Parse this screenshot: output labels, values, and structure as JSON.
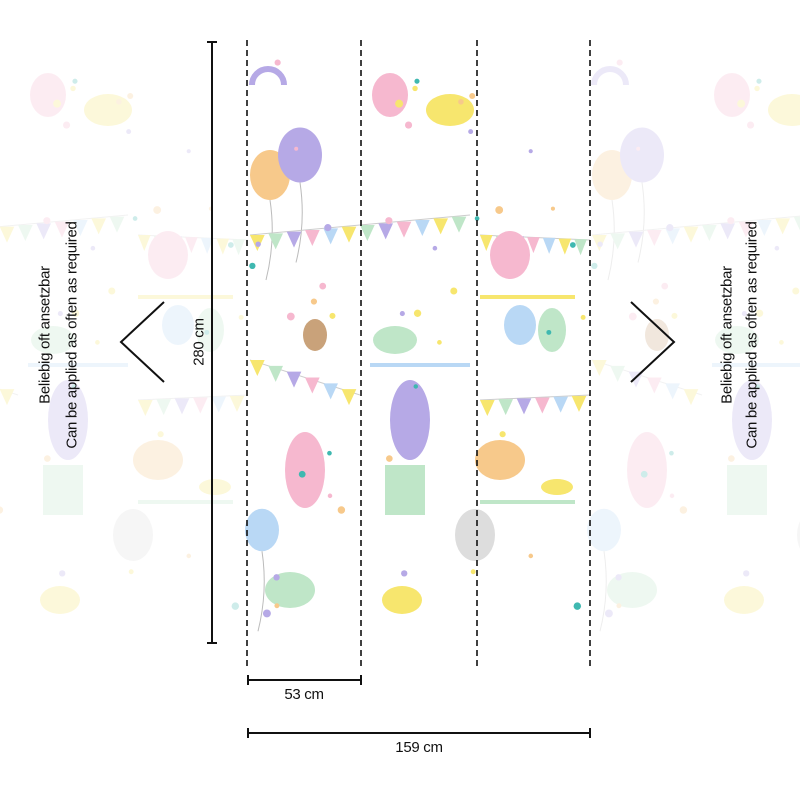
{
  "left_note": {
    "line1": "Beliebig oft ansetzbar",
    "line2": "Can be applied as often as required"
  },
  "right_note": {
    "line1": "Beliebig oft ansetzbar",
    "line2": "Can be applied as often as required"
  },
  "dimensions": {
    "height": "280 cm",
    "strip_width": "53 cm",
    "total_width": "159 cm"
  },
  "strip_count": 3,
  "colors": {
    "lines": "#111111",
    "pastel_pink": "#f6b8cf",
    "pastel_blue": "#b9d8f5",
    "pastel_purple": "#b6a9e6",
    "pastel_yellow": "#f7e66e",
    "pastel_green": "#bfe6c8",
    "pastel_orange": "#f7c98b",
    "teal": "#3fb8b0"
  }
}
